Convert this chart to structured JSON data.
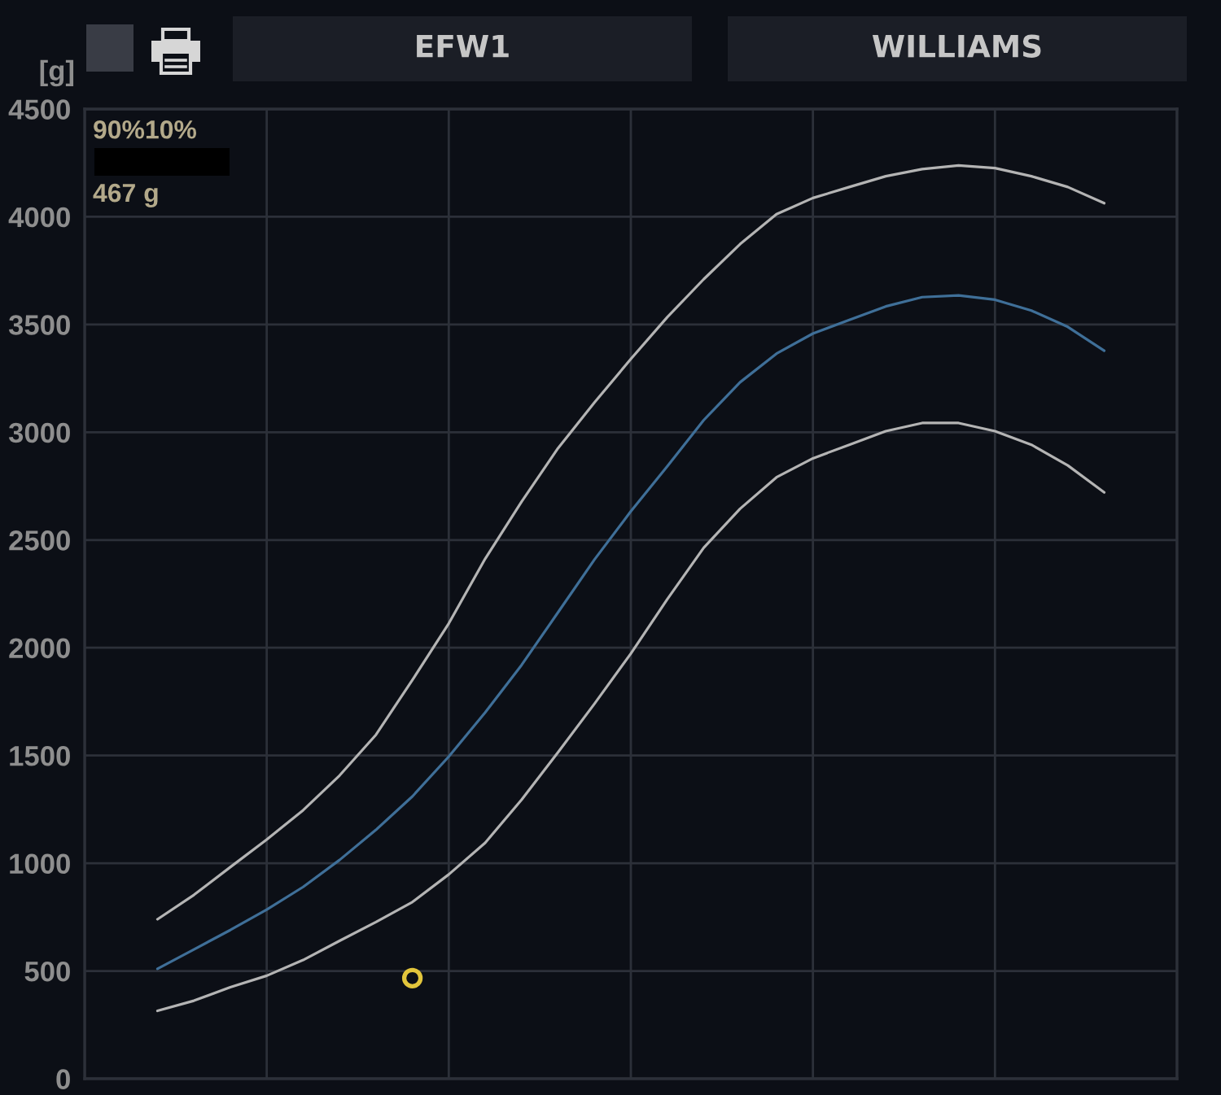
{
  "chart_data": {
    "type": "line",
    "title": "EFW1",
    "subtitle": "WILLIAMS",
    "ylabel": "[g]",
    "annotations": [
      "90%10%",
      "467 g"
    ],
    "categories": [
      null,
      null,
      null,
      null,
      null,
      null,
      null,
      null,
      null,
      null,
      null,
      null,
      null,
      null,
      null,
      null,
      null,
      null,
      null,
      null,
      null,
      null,
      null,
      null,
      null,
      null,
      null
    ],
    "series": [
      {
        "color": "#b4b4b4",
        "values": [
          740,
          853,
          982,
          1110,
          1246,
          1407,
          1596,
          1850,
          2113,
          2413,
          2678,
          2926,
          3138,
          3340,
          3534,
          3710,
          3873,
          4012,
          4087,
          4138,
          4188,
          4221,
          4238,
          4226,
          4188,
          4138,
          4063
        ]
      },
      {
        "color": "#3f6f98",
        "values": [
          510,
          600,
          690,
          785,
          890,
          1015,
          1155,
          1310,
          1495,
          1700,
          1920,
          2164,
          2409,
          2633,
          2842,
          3056,
          3232,
          3365,
          3458,
          3521,
          3584,
          3627,
          3635,
          3615,
          3565,
          3489,
          3378
        ]
      },
      {
        "color": "#b4b4b4",
        "values": [
          315,
          362,
          425,
          478,
          551,
          640,
          727,
          820,
          948,
          1095,
          1295,
          1515,
          1740,
          1973,
          2225,
          2464,
          2645,
          2791,
          2879,
          2942,
          3005,
          3043,
          3043,
          3005,
          2942,
          2846,
          2721
        ]
      },
      {
        "type": "scatter",
        "color": "#e2c53c",
        "marker": "circle",
        "values": [
          null,
          null,
          null,
          null,
          null,
          null,
          null,
          467,
          null,
          null,
          null,
          null,
          null,
          null,
          null,
          null,
          null,
          null,
          null,
          null,
          null,
          null,
          null,
          null,
          null,
          null,
          null
        ]
      }
    ],
    "ylim": [
      0,
      4500
    ],
    "yticks": [
      0,
      500,
      1000,
      1500,
      2000,
      2500,
      3000,
      3500,
      4000,
      4500
    ],
    "grid": true,
    "tick_labels": "y"
  }
}
